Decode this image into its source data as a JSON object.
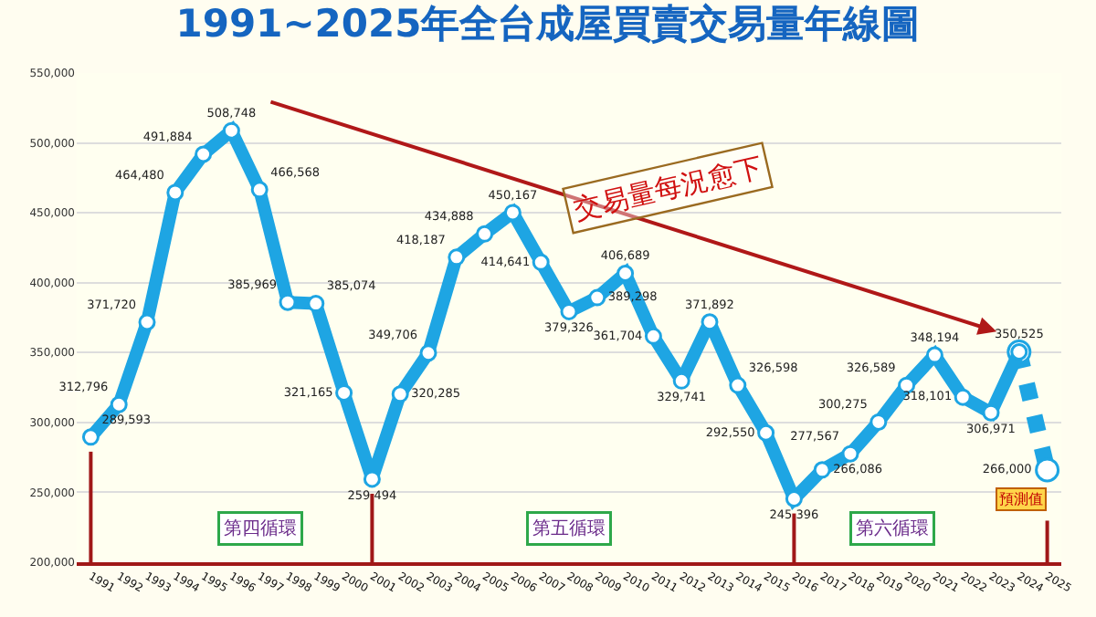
{
  "chart_data": {
    "type": "line",
    "title": "1991~2025年全台成屋買賣交易量年線圖",
    "categories": [
      "1991",
      "1992",
      "1993",
      "1994",
      "1995",
      "1996",
      "1997",
      "1998",
      "1999",
      "2000",
      "2001",
      "2002",
      "2003",
      "2004",
      "2005",
      "2006",
      "2007",
      "2008",
      "2009",
      "2010",
      "2011",
      "2012",
      "2013",
      "2014",
      "2015",
      "2016",
      "2017",
      "2018",
      "2019",
      "2020",
      "2021",
      "2022",
      "2023",
      "2024",
      "2025"
    ],
    "series": [
      {
        "color": "#1ea5e3",
        "marker": "circle",
        "line_style": "solid",
        "values": [
          289593,
          312796,
          371720,
          464480,
          491884,
          508748,
          466568,
          385969,
          385074,
          321165,
          259494,
          320285,
          349706,
          418187,
          434888,
          450167,
          414641,
          379326,
          389298,
          406689,
          361704,
          329741,
          371892,
          326598,
          292550,
          245396,
          266086,
          277567,
          300275,
          326589,
          348194,
          318101,
          306971,
          350525,
          null
        ],
        "value_labels": [
          "289,593",
          "312,796",
          "371,720",
          "464,480",
          "491,884",
          "508,748",
          "466,568",
          "385,969",
          "385,074",
          "321,165",
          "259,494",
          "320,285",
          "349,706",
          "418,187",
          "434,888",
          "450,167",
          "414,641",
          "379,326",
          "389,298",
          "406,689",
          "361,704",
          "329,741",
          "371,892",
          "326,598",
          "292,550",
          "245,396",
          "266,086",
          "277,567",
          "300,275",
          "326,589",
          "348,194",
          "318,101",
          "306,971",
          "350,525",
          null
        ]
      },
      {
        "color": "#1ea5e3",
        "marker": "circle",
        "line_style": "dotted",
        "values": [
          null,
          null,
          null,
          null,
          null,
          null,
          null,
          null,
          null,
          null,
          null,
          null,
          null,
          null,
          null,
          null,
          null,
          null,
          null,
          null,
          null,
          null,
          null,
          null,
          null,
          null,
          null,
          null,
          null,
          null,
          null,
          null,
          null,
          350525,
          266000
        ],
        "value_labels": [
          null,
          null,
          null,
          null,
          null,
          null,
          null,
          null,
          null,
          null,
          null,
          null,
          null,
          null,
          null,
          null,
          null,
          null,
          null,
          null,
          null,
          null,
          null,
          null,
          null,
          null,
          null,
          null,
          null,
          null,
          null,
          null,
          null,
          null,
          "266,000"
        ]
      }
    ],
    "ylim": [
      200000,
      550000
    ],
    "yticks": [
      {
        "value": 200000,
        "label": "200,000"
      },
      {
        "value": 250000,
        "label": "250,000"
      },
      {
        "value": 300000,
        "label": "300,000"
      },
      {
        "value": 350000,
        "label": "350,000"
      },
      {
        "value": 400000,
        "label": "400,000"
      },
      {
        "value": 450000,
        "label": "450,000"
      },
      {
        "value": 500000,
        "label": "500,000"
      },
      {
        "value": 550000,
        "label": "550,000"
      }
    ],
    "grid": "y",
    "ref_lines": [
      {
        "axis": "x",
        "value": "1991",
        "color": "#a01818"
      },
      {
        "axis": "x",
        "value": "2001",
        "color": "#a01818"
      },
      {
        "axis": "x",
        "value": "2016",
        "color": "#a01818"
      },
      {
        "axis": "x",
        "value": "2025",
        "color": "#a01818"
      }
    ],
    "annotations": [
      "第四循環",
      "第五循環",
      "第六循環",
      "預測值",
      "交易量每況愈下"
    ]
  }
}
